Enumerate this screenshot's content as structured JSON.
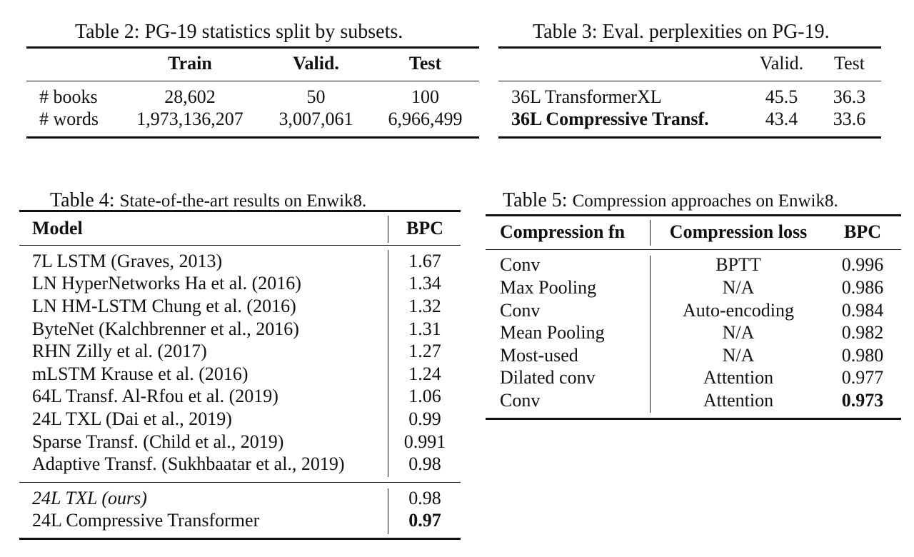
{
  "table2": {
    "caption_label": "Table 2:",
    "caption_text": "PG-19 statistics split by subsets.",
    "headers": [
      "",
      "Train",
      "Valid.",
      "Test"
    ],
    "rows": [
      [
        "# books",
        "28,602",
        "50",
        "100"
      ],
      [
        "# words",
        "1,973,136,207",
        "3,007,061",
        "6,966,499"
      ]
    ]
  },
  "table3": {
    "caption_label": "Table 3:",
    "caption_text": "Eval. perplexities on PG-19.",
    "headers": [
      "",
      "Valid.",
      "Test"
    ],
    "rows": [
      [
        "36L TransformerXL",
        "45.5",
        "36.3"
      ],
      [
        "36L Compressive Transf.",
        "43.4",
        "33.6"
      ]
    ]
  },
  "table4": {
    "caption_label": "Table 4:",
    "caption_text": "State-of-the-art results on Enwik8.",
    "headers": [
      "Model",
      "BPC"
    ],
    "rows": [
      [
        "7L LSTM (Graves, 2013)",
        "1.67"
      ],
      [
        "LN HyperNetworks Ha et al. (2016)",
        "1.34"
      ],
      [
        "LN HM-LSTM Chung et al. (2016)",
        "1.32"
      ],
      [
        "ByteNet (Kalchbrenner et al., 2016)",
        "1.31"
      ],
      [
        "RHN Zilly et al. (2017)",
        "1.27"
      ],
      [
        "mLSTM Krause et al. (2016)",
        "1.24"
      ],
      [
        "64L Transf. Al-Rfou et al. (2019)",
        "1.06"
      ],
      [
        "24L TXL (Dai et al., 2019)",
        "0.99"
      ],
      [
        "Sparse Transf. (Child et al., 2019)",
        "0.991"
      ],
      [
        "Adaptive Transf. (Sukhbaatar et al., 2019)",
        "0.98"
      ]
    ],
    "ours_rows": [
      [
        "24L TXL (ours)",
        "0.98"
      ],
      [
        "24L Compressive Transformer",
        "0.97"
      ]
    ]
  },
  "table5": {
    "caption_label": "Table 5:",
    "caption_text": "Compression approaches on Enwik8.",
    "headers": [
      "Compression fn",
      "Compression loss",
      "BPC"
    ],
    "rows": [
      [
        "Conv",
        "BPTT",
        "0.996"
      ],
      [
        "Max Pooling",
        "N/A",
        "0.986"
      ],
      [
        "Conv",
        "Auto-encoding",
        "0.984"
      ],
      [
        "Mean Pooling",
        "N/A",
        "0.982"
      ],
      [
        "Most-used",
        "N/A",
        "0.980"
      ],
      [
        "Dilated conv",
        "Attention",
        "0.977"
      ],
      [
        "Conv",
        "Attention",
        "0.973"
      ]
    ]
  }
}
